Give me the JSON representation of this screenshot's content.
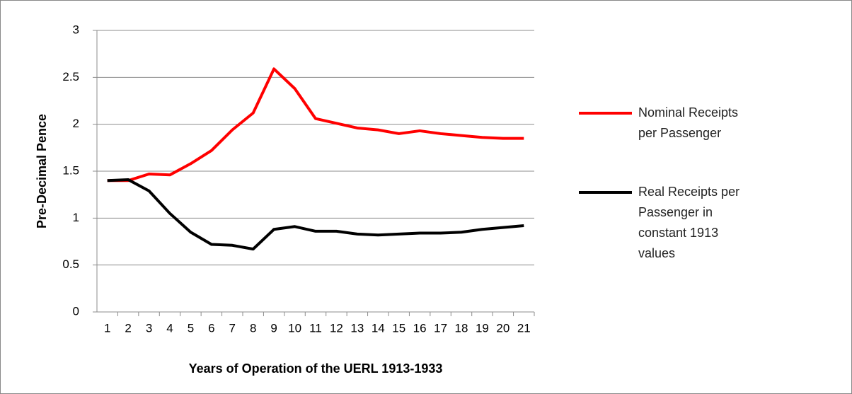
{
  "chart_data": {
    "type": "line",
    "xlabel": "Years of Operation of the UERL 1913-1933",
    "ylabel": "Pre-Decimal Pence",
    "categories": [
      "1",
      "2",
      "3",
      "4",
      "5",
      "6",
      "7",
      "8",
      "9",
      "10",
      "11",
      "12",
      "13",
      "14",
      "15",
      "16",
      "17",
      "18",
      "19",
      "20",
      "21"
    ],
    "series": [
      {
        "name": "Nominal Receipts per Passenger",
        "color": "#ff0000",
        "values": [
          1.4,
          1.4,
          1.47,
          1.46,
          1.58,
          1.72,
          1.94,
          2.12,
          2.59,
          2.38,
          2.06,
          2.01,
          1.96,
          1.94,
          1.9,
          1.93,
          1.9,
          1.88,
          1.86,
          1.85,
          1.85
        ]
      },
      {
        "name": "Real Receipts per Passenger in constant 1913 values",
        "color": "#000000",
        "values": [
          1.4,
          1.41,
          1.29,
          1.05,
          0.85,
          0.72,
          0.71,
          0.67,
          0.88,
          0.91,
          0.86,
          0.86,
          0.83,
          0.82,
          0.83,
          0.84,
          0.84,
          0.85,
          0.88,
          0.9,
          0.92
        ]
      }
    ],
    "ylim": [
      0,
      3
    ],
    "yticks": [
      0,
      0.5,
      1,
      1.5,
      2,
      2.5,
      3
    ],
    "grid": true,
    "legend": "right"
  }
}
